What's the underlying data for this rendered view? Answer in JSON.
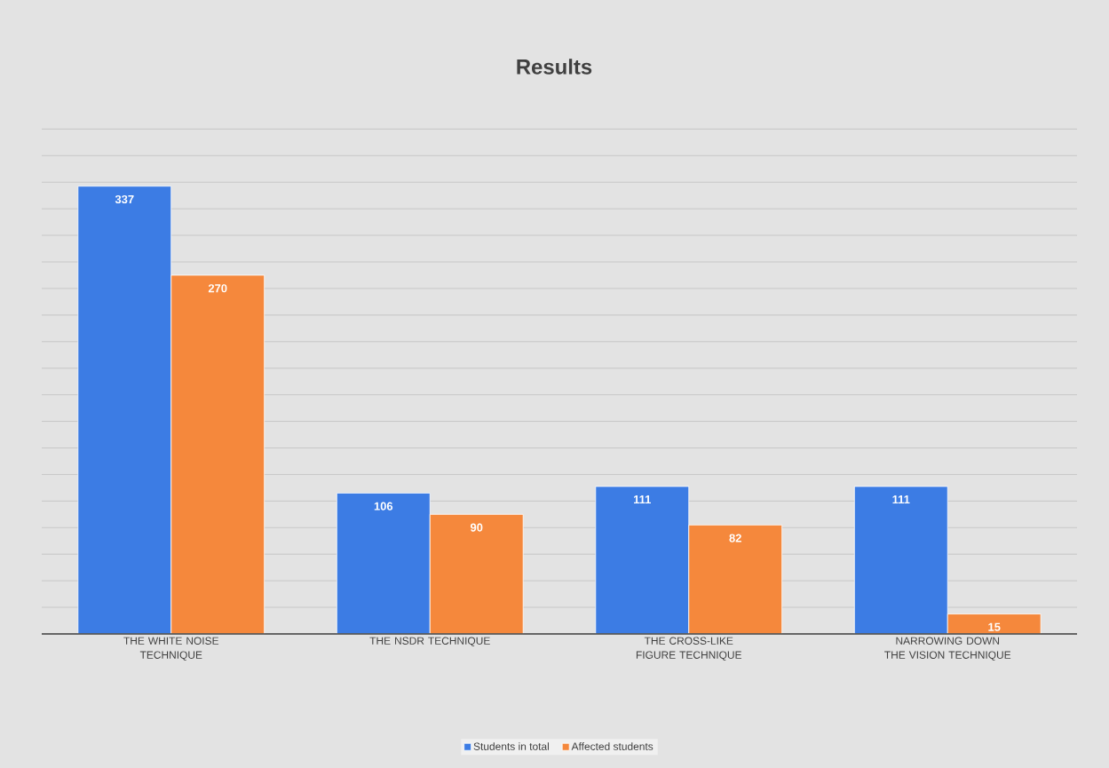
{
  "chart_data": {
    "type": "bar",
    "title": "Results",
    "categories": [
      "THE WHITE NOISE TECHNIQUE",
      "THE NSDR TECHNIQUE",
      "THE CROSS-LIKE FIGURE TECHNIQUE",
      "NARROWING DOWN THE VISION TECHNIQUE"
    ],
    "series": [
      {
        "name": "Students in total",
        "color": "#3c7ce4",
        "values": [
          337,
          106,
          111,
          111
        ]
      },
      {
        "name": "Affected students",
        "color": "#f5883c",
        "values": [
          270,
          90,
          82,
          15
        ]
      }
    ],
    "tick_labels": "x",
    "grid": "y",
    "legend": "bottom",
    "data_labels": true
  }
}
